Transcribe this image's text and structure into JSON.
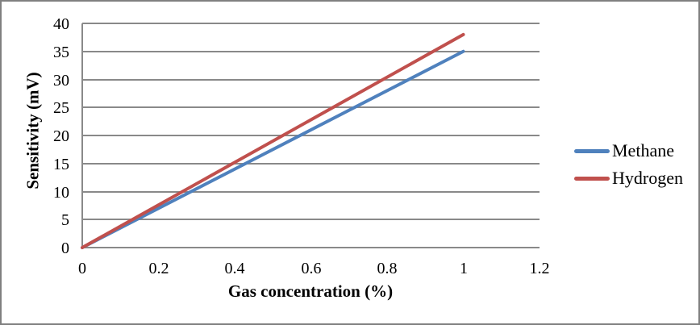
{
  "window": {
    "background_color": "#FFFFFF",
    "border_color": "#808080"
  },
  "chart_data": {
    "type": "line",
    "title": "",
    "xlabel": "Gas concentration (%)",
    "ylabel": "Sensitivity (mV)",
    "xlim": [
      0,
      1.2
    ],
    "ylim": [
      0,
      40
    ],
    "x_ticks": [
      0,
      0.2,
      0.4,
      0.6,
      0.8,
      1,
      1.2
    ],
    "x_tick_labels": [
      "0",
      "0.2",
      "0.4",
      "0.6",
      "0.8",
      "1",
      "1.2"
    ],
    "y_ticks": [
      0,
      5,
      10,
      15,
      20,
      25,
      30,
      35,
      40
    ],
    "y_tick_labels": [
      "0",
      "5",
      "10",
      "15",
      "20",
      "25",
      "30",
      "35",
      "40"
    ],
    "grid": "horizontal",
    "gridline_color": "#898989",
    "axis_color": "#898989",
    "text_color": "#000000",
    "legend_position": "right",
    "legend": [
      "Methane",
      "Hydrogen"
    ],
    "series": [
      {
        "name": "Methane",
        "color": "#4F81BD",
        "x": [
          0,
          1
        ],
        "y": [
          0,
          35
        ]
      },
      {
        "name": "Hydrogen",
        "color": "#C0504D",
        "x": [
          0,
          1
        ],
        "y": [
          0,
          38
        ]
      }
    ]
  }
}
